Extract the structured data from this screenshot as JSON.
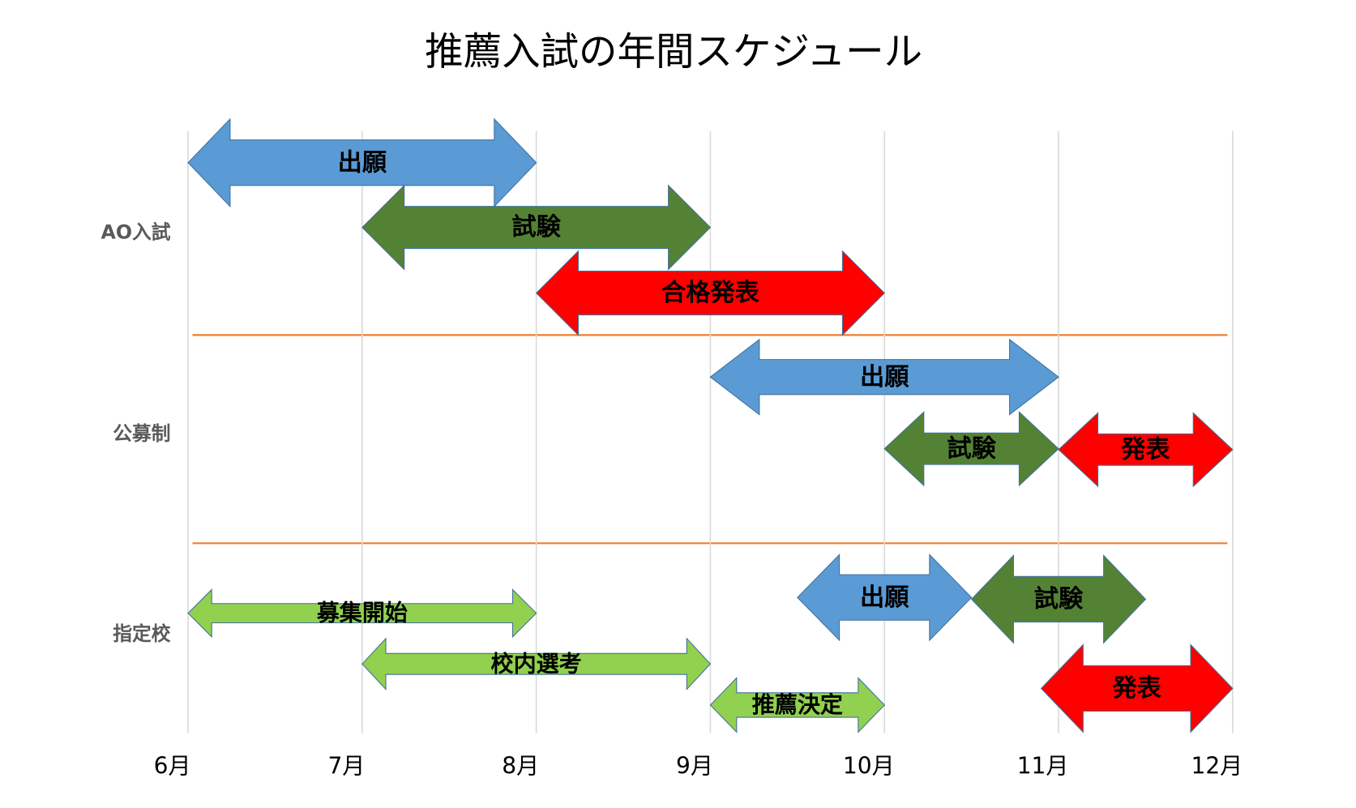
{
  "chart_data": {
    "type": "timeline",
    "title": "推薦入試の年間スケジュール",
    "xlim": [
      6,
      12
    ],
    "xticks": [
      {
        "value": 6,
        "label": "6月"
      },
      {
        "value": 7,
        "label": "7月"
      },
      {
        "value": 8,
        "label": "8月"
      },
      {
        "value": 9,
        "label": "9月"
      },
      {
        "value": 10,
        "label": "10月"
      },
      {
        "value": 11,
        "label": "11月"
      },
      {
        "value": 12,
        "label": "12月"
      }
    ],
    "grid": true,
    "groups": [
      {
        "name": "AO入試",
        "tasks": [
          {
            "label": "出願",
            "start": 6,
            "end": 8,
            "color": "#5b9bd5"
          },
          {
            "label": "試験",
            "start": 7,
            "end": 9,
            "color": "#548235"
          },
          {
            "label": "合格発表",
            "start": 8,
            "end": 10,
            "color": "#ff0000"
          }
        ]
      },
      {
        "name": "公募制",
        "tasks": [
          {
            "label": "出願",
            "start": 9,
            "end": 11,
            "color": "#5b9bd5"
          },
          {
            "label": "試験",
            "start": 10,
            "end": 11,
            "color": "#548235"
          },
          {
            "label": "発表",
            "start": 11,
            "end": 12,
            "color": "#ff0000"
          }
        ]
      },
      {
        "name": "指定校",
        "tasks": [
          {
            "label": "募集開始",
            "start": 6,
            "end": 8,
            "color": "#92d050"
          },
          {
            "label": "校内選考",
            "start": 7,
            "end": 9,
            "color": "#92d050"
          },
          {
            "label": "推薦決定",
            "start": 9,
            "end": 10,
            "color": "#92d050"
          },
          {
            "label": "出願",
            "start": 9.5,
            "end": 10.5,
            "color": "#5b9bd5"
          },
          {
            "label": "試験",
            "start": 10.5,
            "end": 11.5,
            "color": "#548235"
          },
          {
            "label": "発表",
            "start": 10.9,
            "end": 12,
            "color": "#ff0000"
          }
        ]
      }
    ]
  }
}
